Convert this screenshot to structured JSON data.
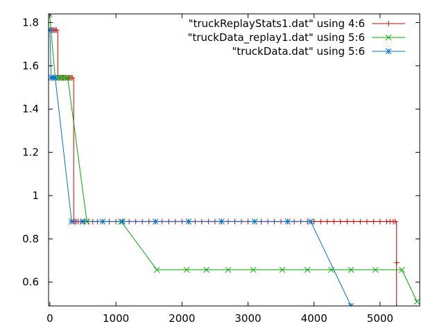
{
  "chart_data": {
    "type": "line",
    "title": "",
    "xlabel": "",
    "ylabel": "",
    "xlim": [
      -20,
      5600
    ],
    "ylim": [
      0.49,
      1.84
    ],
    "x_ticks": [
      {
        "value": 0,
        "label": "0"
      },
      {
        "value": 1000,
        "label": "1000"
      },
      {
        "value": 2000,
        "label": "2000"
      },
      {
        "value": 3000,
        "label": "3000"
      },
      {
        "value": 4000,
        "label": "4000"
      },
      {
        "value": 5000,
        "label": "5000"
      }
    ],
    "y_ticks": [
      {
        "value": 0.6,
        "label": "0.6"
      },
      {
        "value": 0.8,
        "label": "0.8"
      },
      {
        "value": 1.0,
        "label": "1"
      },
      {
        "value": 1.2,
        "label": "1.2"
      },
      {
        "value": 1.4,
        "label": "1.4"
      },
      {
        "value": 1.6,
        "label": "1.6"
      },
      {
        "value": 1.8,
        "label": "1.8"
      }
    ],
    "legend_position": "top-right",
    "grid": false,
    "series": [
      {
        "name": "\"truckReplayStats1.dat\" using 4:6",
        "color": "#cc0000",
        "marker": "plus",
        "style": "steps",
        "x": [
          0,
          20,
          40,
          60,
          80,
          100,
          120,
          140,
          160,
          180,
          200,
          220,
          240,
          260,
          280,
          300,
          320,
          340,
          360,
          380,
          400,
          430,
          470,
          520,
          580,
          650,
          720,
          800,
          900,
          1000,
          1100,
          1200,
          1300,
          1400,
          1500,
          1600,
          1700,
          1800,
          1900,
          2000,
          2100,
          2200,
          2300,
          2400,
          2500,
          2600,
          2700,
          2800,
          2900,
          3000,
          3100,
          3200,
          3300,
          3400,
          3500,
          3600,
          3700,
          3800,
          3900,
          4000,
          4100,
          4200,
          4300,
          4400,
          4500,
          4600,
          4700,
          4800,
          4900,
          5000,
          5100,
          5150,
          5200,
          5230,
          5250,
          5250
        ],
        "y": [
          1.765,
          1.765,
          1.765,
          1.765,
          1.765,
          1.765,
          1.545,
          1.545,
          1.545,
          1.545,
          1.545,
          1.545,
          1.545,
          1.545,
          1.545,
          1.545,
          1.545,
          1.545,
          0.88,
          0.88,
          0.88,
          0.88,
          0.88,
          0.88,
          0.88,
          0.88,
          0.88,
          0.88,
          0.88,
          0.88,
          0.88,
          0.88,
          0.88,
          0.88,
          0.88,
          0.88,
          0.88,
          0.88,
          0.88,
          0.88,
          0.88,
          0.88,
          0.88,
          0.88,
          0.88,
          0.88,
          0.88,
          0.88,
          0.88,
          0.88,
          0.88,
          0.88,
          0.88,
          0.88,
          0.88,
          0.88,
          0.88,
          0.88,
          0.88,
          0.88,
          0.88,
          0.88,
          0.88,
          0.88,
          0.88,
          0.88,
          0.88,
          0.88,
          0.88,
          0.88,
          0.88,
          0.88,
          0.88,
          0.88,
          0.69,
          0.49
        ]
      },
      {
        "name": "\"truckData_replay1.dat\" using 5:6",
        "color": "#00aa00",
        "marker": "cross",
        "style": "linespoints",
        "x": [
          -5,
          80,
          130,
          170,
          230,
          270,
          560,
          1080,
          1620,
          2070,
          2370,
          2700,
          3080,
          3520,
          3900,
          4260,
          4560,
          4930,
          5330,
          5560
        ],
        "y": [
          1.84,
          1.545,
          1.545,
          1.545,
          1.545,
          1.545,
          0.88,
          0.88,
          0.657,
          0.657,
          0.657,
          0.657,
          0.657,
          0.657,
          0.657,
          0.657,
          0.657,
          0.657,
          0.657,
          0.51
        ]
      },
      {
        "name": "\"truckData.dat\" using 5:6",
        "color": "#0070d0",
        "marker": "star",
        "style": "linespoints",
        "x": [
          0,
          20,
          50,
          80,
          330,
          500,
          800,
          1100,
          1600,
          2100,
          2600,
          3100,
          3600,
          3950,
          4560
        ],
        "y": [
          1.765,
          1.545,
          1.545,
          1.545,
          0.88,
          0.88,
          0.88,
          0.88,
          0.88,
          0.88,
          0.88,
          0.88,
          0.88,
          0.88,
          0.49
        ]
      }
    ]
  }
}
